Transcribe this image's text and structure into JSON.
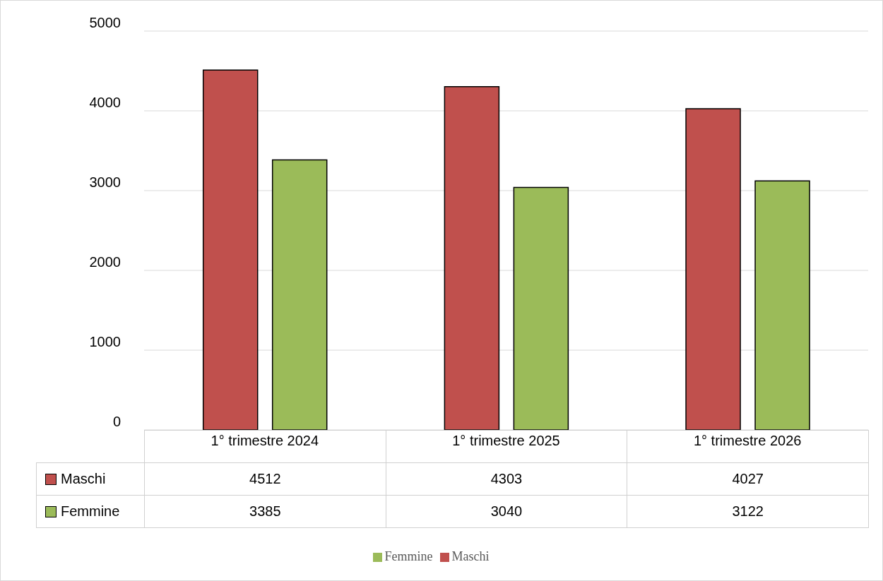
{
  "chart_data": {
    "type": "bar",
    "categories": [
      "1° trimestre 2024",
      "1° trimestre 2025",
      "1° trimestre 2026"
    ],
    "series": [
      {
        "name": "Maschi",
        "color": "#c0504d",
        "values": [
          4512,
          4303,
          4027
        ]
      },
      {
        "name": "Femmine",
        "color": "#9bbb59",
        "values": [
          3385,
          3040,
          3122
        ]
      }
    ],
    "ylim": [
      0,
      5000
    ],
    "yticks": [
      0,
      1000,
      2000,
      3000,
      4000,
      5000
    ],
    "grid": "y",
    "legend": "bottom",
    "data_labels": true
  }
}
